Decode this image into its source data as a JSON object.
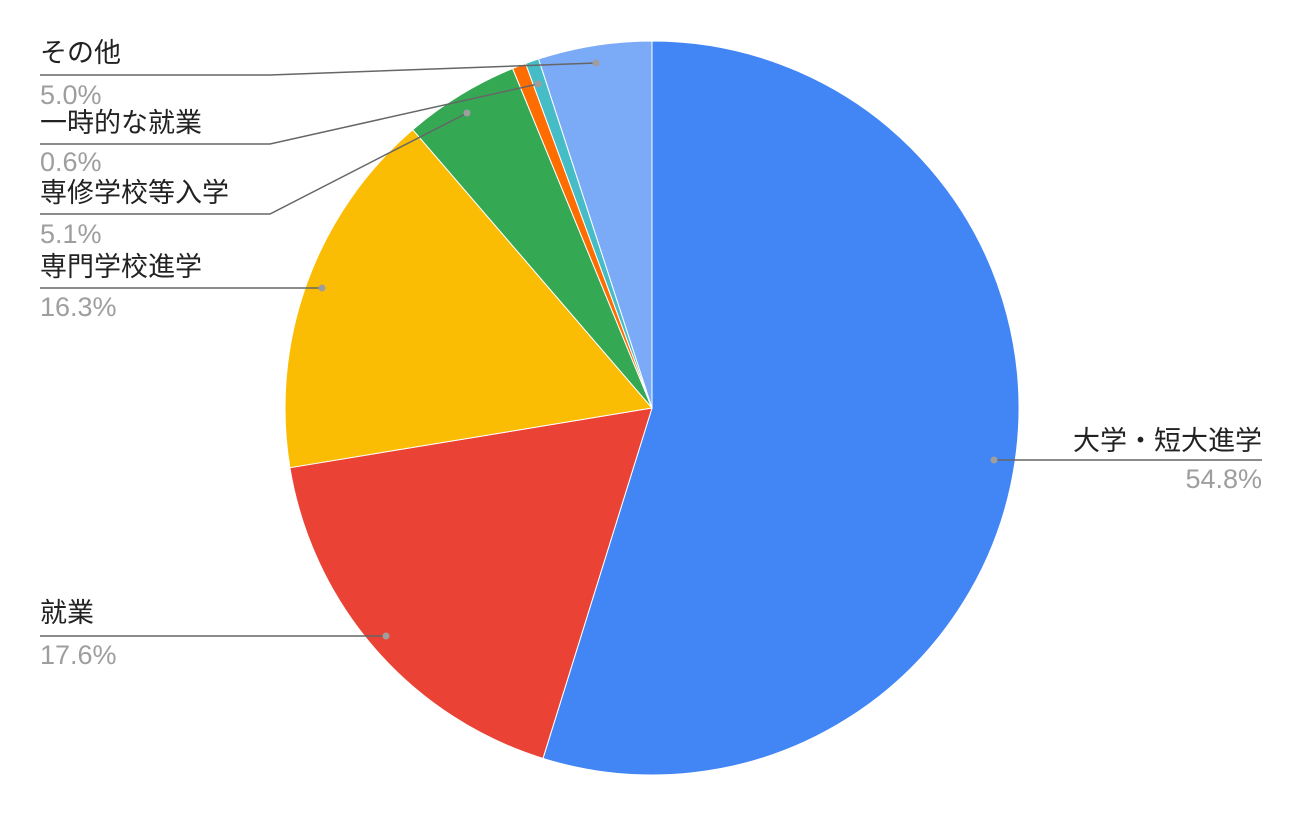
{
  "chart_data": {
    "type": "pie",
    "title": "",
    "start_angle_deg": 0,
    "direction": "clockwise",
    "slices": [
      {
        "label": "大学・短大進学",
        "value": 54.8,
        "percent_label": "54.8%",
        "color": "#4285F4"
      },
      {
        "label": "就業",
        "value": 17.6,
        "percent_label": "17.6%",
        "color": "#EA4335"
      },
      {
        "label": "専門学校進学",
        "value": 16.3,
        "percent_label": "16.3%",
        "color": "#FBBC04"
      },
      {
        "label": "専修学校等入学",
        "value": 5.1,
        "percent_label": "5.1%",
        "color": "#34A853"
      },
      {
        "label": "一時的な就業",
        "value": 0.6,
        "percent_label": "0.6%",
        "color": "#FF6D01"
      },
      {
        "label": "",
        "value": 0.6,
        "percent_label": "",
        "color": "#46BDC6"
      },
      {
        "label": "その他",
        "value": 5.0,
        "percent_label": "5.0%",
        "color": "#7BAAF7"
      }
    ],
    "legend": "none"
  }
}
